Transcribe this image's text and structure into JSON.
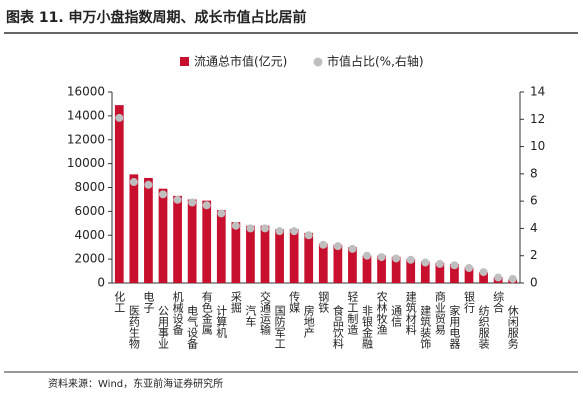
{
  "chart_data": {
    "type": "bar_dot",
    "title": "图表 11. 申万小盘指数周期、成长市值占比居前",
    "source": "资料来源：Wind，东亚前海证券研究所",
    "categories": [
      "化工",
      "医药生物",
      "电子",
      "公用事业",
      "机械设备",
      "电气设备",
      "有色金属",
      "计算机",
      "采掘",
      "汽车",
      "交通运输",
      "国防军工",
      "传媒",
      "房地产",
      "钢铁",
      "食品饮料",
      "轻工制造",
      "非银金融",
      "农林牧渔",
      "通信",
      "建筑材料",
      "建筑装饰",
      "商业贸易",
      "家用电器",
      "银行",
      "纺织服装",
      "综合",
      "休闲服务"
    ],
    "series": [
      {
        "name": "流通总市值(亿元)",
        "color": "#c8102e",
        "values": [
          14900,
          9100,
          8800,
          7900,
          7300,
          7000,
          6900,
          6100,
          5100,
          4800,
          4800,
          4500,
          4500,
          4200,
          3300,
          3200,
          3000,
          2300,
          2300,
          2200,
          2000,
          1800,
          1700,
          1600,
          1300,
          900,
          500,
          300
        ]
      },
      {
        "name": "市值占比(%,右轴)",
        "color": "#bfbfbf",
        "axis": "y2",
        "values": [
          12.1,
          7.4,
          7.2,
          6.5,
          6.1,
          5.9,
          5.7,
          5.1,
          4.2,
          4.0,
          4.0,
          3.8,
          3.8,
          3.5,
          2.8,
          2.7,
          2.5,
          2.0,
          1.9,
          1.8,
          1.7,
          1.5,
          1.4,
          1.3,
          1.1,
          0.8,
          0.4,
          0.3
        ]
      }
    ],
    "ylim": [
      0,
      16000
    ],
    "yticks": [
      0,
      2000,
      4000,
      6000,
      8000,
      10000,
      12000,
      14000,
      16000
    ],
    "y2lim": [
      0,
      14
    ],
    "y2ticks": [
      0,
      2,
      4,
      6,
      8,
      10,
      12,
      14
    ]
  }
}
